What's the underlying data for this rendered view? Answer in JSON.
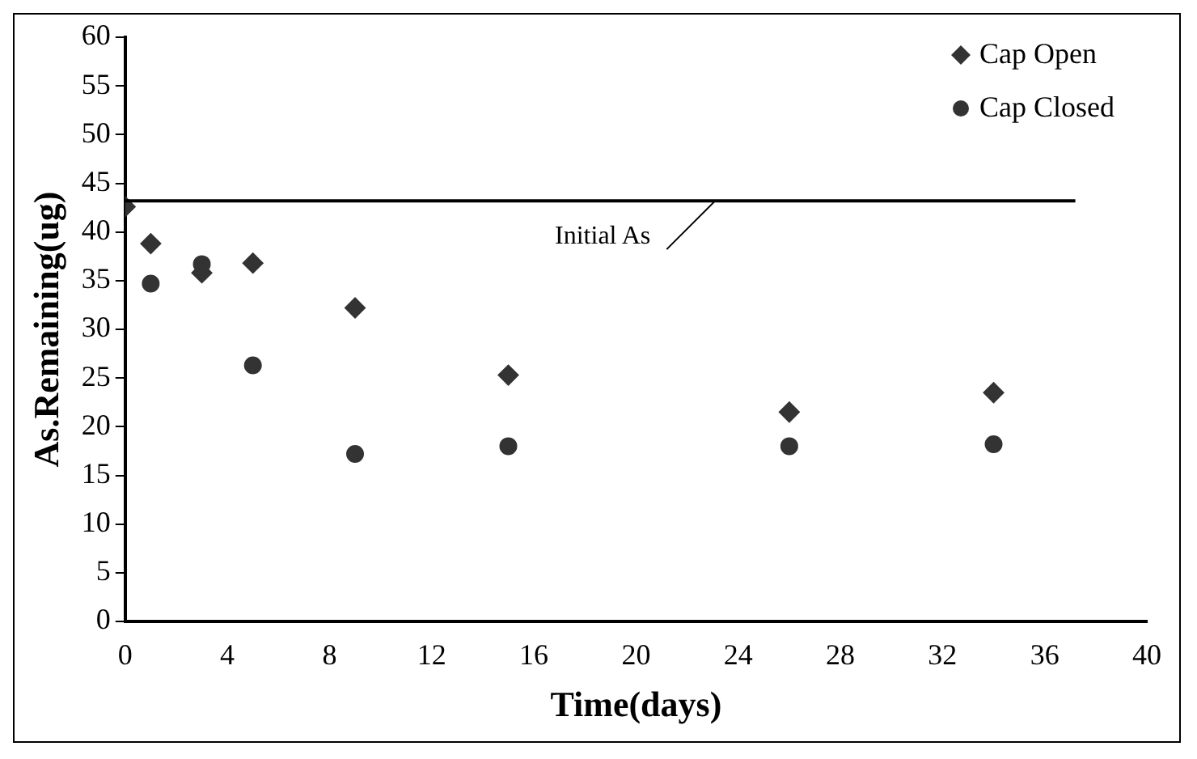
{
  "chart_data": {
    "type": "scatter",
    "xlabel": "Time(days)",
    "ylabel": "As.Remaining(ug)",
    "x": [
      0,
      1,
      3,
      5,
      9,
      15,
      26,
      34
    ],
    "series": [
      {
        "name": "Cap Open",
        "color": "#333333",
        "marker": "diamond",
        "values": [
          42.6,
          38.8,
          35.8,
          36.8,
          32.2,
          25.3,
          21.5,
          23.5
        ]
      },
      {
        "name": "Cap Closed",
        "color": "#333333",
        "marker": "circle",
        "values": [
          null,
          34.7,
          36.7,
          26.3,
          17.2,
          18.0,
          18.0,
          18.2
        ]
      }
    ],
    "xlim": [
      0,
      40
    ],
    "xticks": [
      0,
      4,
      8,
      12,
      16,
      20,
      24,
      28,
      32,
      36,
      40
    ],
    "ylim": [
      0,
      60
    ],
    "yticks": [
      0,
      5,
      10,
      15,
      20,
      25,
      30,
      35,
      40,
      45,
      50,
      55,
      60
    ],
    "ref_lines": [
      {
        "axis": "y",
        "value": 43.2,
        "label": "Initial As",
        "color": "#000000"
      }
    ],
    "grid": false,
    "legend": "top right"
  }
}
